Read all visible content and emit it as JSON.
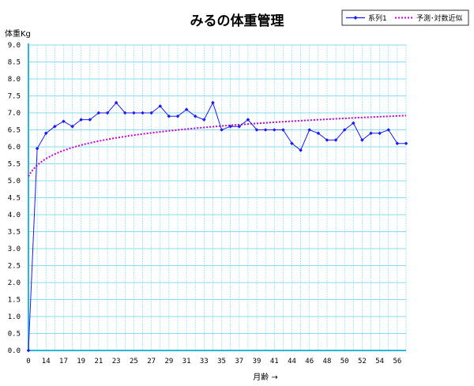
{
  "chart_data": {
    "type": "line",
    "title": "みるの体重管理",
    "ylabel": "体重Kg",
    "xlabel": "月齢 →",
    "ylim": [
      0,
      9
    ],
    "yticks": [
      "0.0",
      "0.5",
      "1.0",
      "1.5",
      "2.0",
      "2.5",
      "3.0",
      "3.5",
      "4.0",
      "4.5",
      "5.0",
      "5.5",
      "6.0",
      "6.5",
      "7.0",
      "7.5",
      "8.0",
      "8.5",
      "9.0"
    ],
    "xticks": [
      "0",
      "14",
      "17",
      "19",
      "21",
      "23",
      "25",
      "27",
      "29",
      "31",
      "33",
      "35",
      "37",
      "39",
      "41",
      "44",
      "46",
      "48",
      "50",
      "52",
      "54",
      "56"
    ],
    "grid": true,
    "legend_position": "top-right",
    "series": [
      {
        "name": "系列1",
        "color": "#1a1aff",
        "marker": "diamond",
        "values": [
          0.0,
          5.95,
          6.4,
          6.6,
          6.75,
          6.6,
          6.8,
          6.8,
          7.0,
          7.0,
          7.3,
          7.0,
          7.0,
          7.0,
          7.0,
          7.2,
          6.9,
          6.9,
          7.1,
          6.9,
          6.8,
          7.3,
          6.5,
          6.6,
          6.6,
          6.8,
          6.5,
          6.5,
          6.5,
          6.5,
          6.1,
          5.9,
          6.5,
          6.4,
          6.2,
          6.2,
          6.5,
          6.7,
          6.2,
          6.4,
          6.4,
          6.5,
          6.1,
          6.1
        ]
      },
      {
        "name": "予測･対数近似",
        "color": "#cc00cc",
        "style": "dotted",
        "trendline": "logarithmic"
      }
    ]
  }
}
